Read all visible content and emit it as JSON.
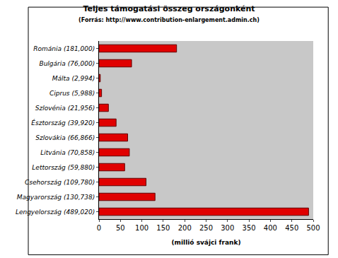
{
  "chart_data": {
    "type": "bar",
    "orientation": "horizontal",
    "title": "Teljes támogatási összeg országonként",
    "subtitle": "(Forrás: http://www.contribution-enlargement.admin.ch)",
    "xlabel": "(millió svájci frank)",
    "categories": [
      "Románia (181,000)",
      "Bulgária (76,000)",
      "Málta (2,994)",
      "Ciprus (5,988)",
      "Szlovénia (21,956)",
      "Észtország (39,920)",
      "Szlovákia (66,866)",
      "Litvánia (70,858)",
      "Lettország (59,880)",
      "Csehország (109,780)",
      "Magyarország (130,738)",
      "Lengyelország (489,020)"
    ],
    "values": [
      181,
      76,
      2.994,
      5.988,
      21.956,
      39.92,
      66.866,
      70.858,
      59.88,
      109.78,
      130.738,
      489.02
    ],
    "color": "#e00000",
    "xlim": [
      0,
      500
    ],
    "xticks": [
      0,
      50,
      100,
      150,
      200,
      250,
      300,
      350,
      400,
      450,
      500
    ],
    "grid": false
  }
}
